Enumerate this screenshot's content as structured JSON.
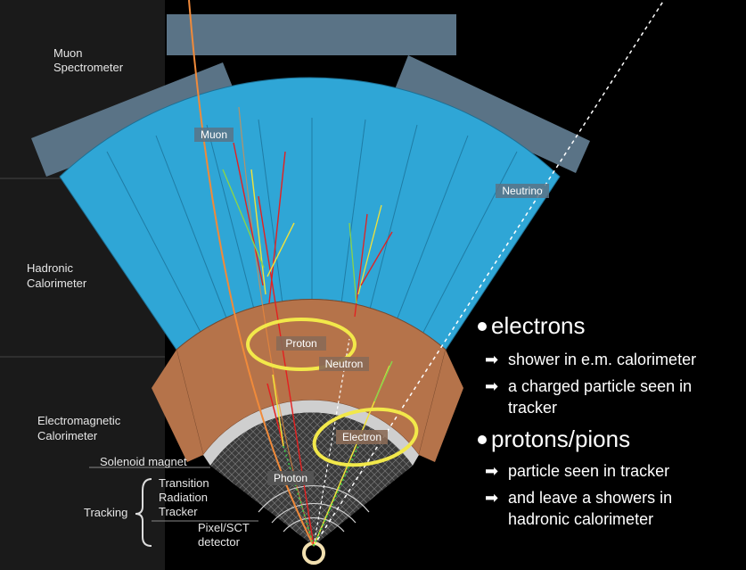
{
  "side_labels": {
    "muon_spectrometer": [
      "Muon",
      "Spectrometer"
    ],
    "hadronic_calorimeter": [
      "Hadronic",
      "Calorimeter"
    ],
    "em_calorimeter": [
      "Electromagnetic",
      "Calorimeter"
    ],
    "solenoid": "Solenoid magnet",
    "tracking": "Tracking",
    "trt": [
      "Transition",
      "Radiation",
      "Tracker"
    ],
    "pixel": [
      "Pixel/SCT",
      "detector"
    ]
  },
  "particle_labels": {
    "muon": "Muon",
    "neutrino": "Neutrino",
    "proton": "Proton",
    "neutron": "Neutron",
    "electron": "Electron",
    "photon": "Photon"
  },
  "bullets": [
    {
      "head": "electrons",
      "items": [
        [
          "shower in e.m. calorimeter"
        ],
        [
          "a charged particle seen in",
          "tracker"
        ]
      ]
    },
    {
      "head": "protons/pions",
      "items": [
        [
          "particle seen in tracker"
        ],
        [
          "and leave a showers in",
          "hadronic calorimeter"
        ]
      ]
    }
  ],
  "colors": {
    "hadronic": "#2fa6d6",
    "em": "#b5734a",
    "muon_chamber": "#5a7386",
    "highlight": "#f2e84a",
    "muon_track": "#f08a3a"
  }
}
